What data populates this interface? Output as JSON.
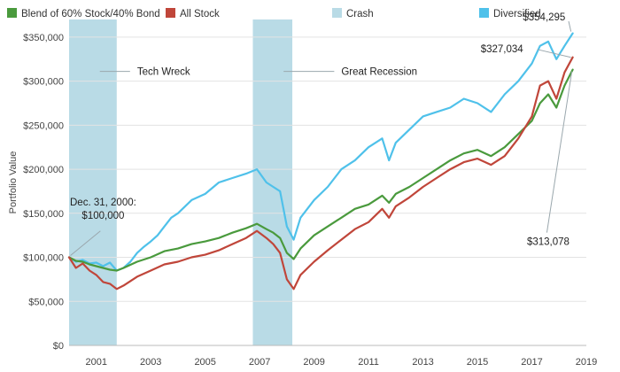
{
  "chart_data": {
    "type": "line",
    "title": "",
    "xlabel": "",
    "ylabel": "Portfolio Value",
    "ylim": [
      0,
      370000
    ],
    "xlim": [
      2000.0,
      2019.0
    ],
    "grid": true,
    "legend_position": "top",
    "y_ticks": [
      0,
      50000,
      100000,
      150000,
      200000,
      250000,
      300000,
      350000
    ],
    "y_tick_labels": [
      "$0",
      "$50,000",
      "$100,000",
      "$150,000",
      "$200,000",
      "$250,000",
      "$300,000",
      "$350,000"
    ],
    "x_ticks": [
      2001,
      2003,
      2005,
      2007,
      2009,
      2011,
      2013,
      2015,
      2017,
      2019
    ],
    "x_tick_labels": [
      "2001",
      "2003",
      "2005",
      "2007",
      "2009",
      "2011",
      "2013",
      "2015",
      "2017",
      "2019"
    ],
    "legend": [
      {
        "label": "Blend of 60% Stock/40% Bond",
        "color": "#4a9a3d"
      },
      {
        "label": "All Stock",
        "color": "#c0463a"
      },
      {
        "label": "Crash",
        "color": "#b9dbe6"
      },
      {
        "label": "Diversified",
        "color": "#4fc1ea"
      }
    ],
    "crash_periods": [
      {
        "label": "Tech Wreck",
        "start": 2000.0,
        "end": 2001.75
      },
      {
        "label": "Great Recession",
        "start": 2006.75,
        "end": 2008.2
      }
    ],
    "series": [
      {
        "name": "Diversified",
        "color": "#4fc1ea",
        "x": [
          2000.0,
          2000.25,
          2000.5,
          2000.75,
          2001.0,
          2001.25,
          2001.5,
          2001.75,
          2002.0,
          2002.25,
          2002.5,
          2002.75,
          2003.0,
          2003.25,
          2003.5,
          2003.75,
          2004.0,
          2004.5,
          2005.0,
          2005.5,
          2006.0,
          2006.5,
          2006.9,
          2007.25,
          2007.5,
          2007.75,
          2008.0,
          2008.25,
          2008.5,
          2009.0,
          2009.5,
          2010.0,
          2010.5,
          2011.0,
          2011.5,
          2011.75,
          2012.0,
          2012.5,
          2013.0,
          2013.5,
          2014.0,
          2014.5,
          2015.0,
          2015.5,
          2016.0,
          2016.5,
          2017.0,
          2017.3,
          2017.6,
          2017.9,
          2018.2,
          2018.5
        ],
        "values": [
          100000,
          95000,
          97000,
          93000,
          94000,
          90000,
          94000,
          85000,
          88000,
          95000,
          105000,
          112000,
          118000,
          125000,
          135000,
          145000,
          150000,
          165000,
          172000,
          185000,
          190000,
          195000,
          200000,
          185000,
          180000,
          175000,
          135000,
          120000,
          145000,
          165000,
          180000,
          200000,
          210000,
          225000,
          235000,
          210000,
          230000,
          245000,
          260000,
          265000,
          270000,
          280000,
          275000,
          265000,
          285000,
          300000,
          320000,
          340000,
          345000,
          325000,
          340000,
          354295
        ]
      },
      {
        "name": "Blend of 60% Stock/40% Bond",
        "color": "#4a9a3d",
        "x": [
          2000.0,
          2000.25,
          2000.5,
          2000.75,
          2001.0,
          2001.25,
          2001.5,
          2001.75,
          2002.0,
          2002.5,
          2003.0,
          2003.5,
          2004.0,
          2004.5,
          2005.0,
          2005.5,
          2006.0,
          2006.5,
          2006.9,
          2007.25,
          2007.5,
          2007.75,
          2008.0,
          2008.25,
          2008.5,
          2009.0,
          2009.5,
          2010.0,
          2010.5,
          2011.0,
          2011.5,
          2011.75,
          2012.0,
          2012.5,
          2013.0,
          2013.5,
          2014.0,
          2014.5,
          2015.0,
          2015.5,
          2016.0,
          2016.5,
          2017.0,
          2017.3,
          2017.6,
          2017.9,
          2018.2,
          2018.5
        ],
        "values": [
          100000,
          96000,
          95000,
          92000,
          90000,
          88000,
          86000,
          85000,
          88000,
          95000,
          100000,
          107000,
          110000,
          115000,
          118000,
          122000,
          128000,
          133000,
          138000,
          132000,
          128000,
          122000,
          105000,
          98000,
          110000,
          125000,
          135000,
          145000,
          155000,
          160000,
          170000,
          162000,
          172000,
          180000,
          190000,
          200000,
          210000,
          218000,
          222000,
          215000,
          225000,
          240000,
          255000,
          275000,
          285000,
          270000,
          295000,
          313078
        ]
      },
      {
        "name": "All Stock",
        "color": "#c0463a",
        "x": [
          2000.0,
          2000.25,
          2000.5,
          2000.75,
          2001.0,
          2001.25,
          2001.5,
          2001.75,
          2002.0,
          2002.5,
          2003.0,
          2003.5,
          2004.0,
          2004.5,
          2005.0,
          2005.5,
          2006.0,
          2006.5,
          2006.9,
          2007.25,
          2007.5,
          2007.75,
          2008.0,
          2008.25,
          2008.5,
          2009.0,
          2009.5,
          2010.0,
          2010.5,
          2011.0,
          2011.5,
          2011.75,
          2012.0,
          2012.5,
          2013.0,
          2013.5,
          2014.0,
          2014.5,
          2015.0,
          2015.5,
          2016.0,
          2016.5,
          2017.0,
          2017.3,
          2017.6,
          2017.9,
          2018.2,
          2018.5
        ],
        "values": [
          100000,
          88000,
          93000,
          85000,
          80000,
          72000,
          70000,
          64000,
          68000,
          78000,
          85000,
          92000,
          95000,
          100000,
          103000,
          108000,
          115000,
          122000,
          130000,
          122000,
          115000,
          105000,
          75000,
          64000,
          80000,
          95000,
          108000,
          120000,
          132000,
          140000,
          155000,
          145000,
          158000,
          168000,
          180000,
          190000,
          200000,
          208000,
          212000,
          205000,
          215000,
          235000,
          260000,
          295000,
          300000,
          280000,
          310000,
          327034
        ]
      }
    ],
    "annotations": [
      {
        "name": "tech-wreck",
        "text": "Tech Wreck",
        "x": 2001.0,
        "y": 310000,
        "tx": 2002.5,
        "ty": 310000
      },
      {
        "name": "great-recession",
        "text": "Great Recession",
        "x": 2007.75,
        "y": 310000,
        "tx": 2010.0,
        "ty": 310000
      },
      {
        "name": "start-value",
        "text": "Dec. 31, 2000:",
        "text2": "$100,000",
        "x": 2000.05,
        "y": 102000,
        "tx": 2000.85,
        "ty": 160000
      },
      {
        "name": "diversified-end",
        "text": "$354,295",
        "x": 2018.5,
        "y": 354295,
        "tx": 2017.45,
        "ty": 372000
      },
      {
        "name": "allstock-end",
        "text": "$327,034",
        "x": 2018.5,
        "y": 327034,
        "tx": 2015.9,
        "ty": 337000
      },
      {
        "name": "blend-end",
        "text": "$313,078",
        "x": 2018.5,
        "y": 313078,
        "tx": 2017.6,
        "ty": 118000
      }
    ]
  }
}
